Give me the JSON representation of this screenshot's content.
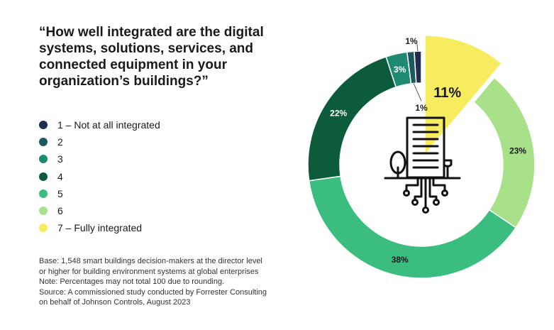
{
  "title": "“How well integrated are the digital systems, solutions, services, and connected equipment in your organization’s buildings?”",
  "notes": [
    "Base: 1,548 smart buildings decision-makers at the director level",
    "or higher for building environment systems at global enterprises",
    "Note: Percentages may not total 100 due to rounding.",
    "Source: A commissioned study conducted by Forrester Consulting",
    "on behalf of Johnson Controls, August 2023"
  ],
  "chart_data": {
    "type": "pie",
    "variant": "donut",
    "title": "“How well integrated are the digital systems, solutions, services, and connected equipment in your organization’s buildings?”",
    "categories": [
      "1 – Not at all integrated",
      "2",
      "3",
      "4",
      "5",
      "6",
      "7 – Fully integrated"
    ],
    "values": [
      1,
      1,
      3,
      22,
      38,
      23,
      11
    ],
    "labels": [
      "1%",
      "1%",
      "3%",
      "22%",
      "38%",
      "23%",
      "11%"
    ],
    "colors": [
      "#1f2d4e",
      "#1d5a60",
      "#1f8a72",
      "#0c5c3c",
      "#3bbd80",
      "#a9e08a",
      "#f7ec5f"
    ],
    "exploded_category": "7 – Fully integrated",
    "legend_position": "left",
    "center_icon": "building-with-tree-icon"
  }
}
